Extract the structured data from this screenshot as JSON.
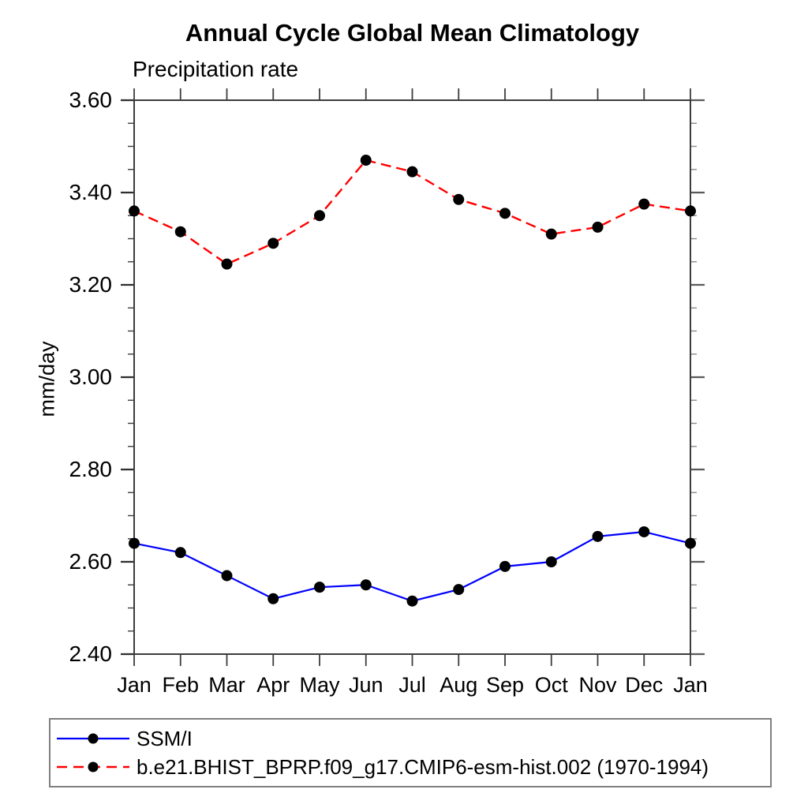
{
  "chart_data": {
    "type": "line",
    "title": "Annual Cycle Global Mean Climatology",
    "subtitle": "Precipitation rate",
    "ylabel": "mm/day",
    "xlabel": "",
    "categories": [
      "Jan",
      "Feb",
      "Mar",
      "Apr",
      "May",
      "Jun",
      "Jul",
      "Aug",
      "Sep",
      "Oct",
      "Nov",
      "Dec",
      "Jan"
    ],
    "ylim": [
      2.4,
      3.6
    ],
    "ytick_major": [
      2.4,
      2.6,
      2.8,
      3.0,
      3.2,
      3.4,
      3.6
    ],
    "ytick_labels": [
      "2.40",
      "2.60",
      "2.80",
      "3.00",
      "3.20",
      "3.40",
      "3.60"
    ],
    "ytick_minor_step": 0.05,
    "grid": false,
    "legend_position": "bottom-left box",
    "marker": "filled-circle",
    "marker_color": "#000000",
    "series": [
      {
        "name": "SSM/I",
        "color": "#0000ff",
        "style": "solid",
        "values": [
          2.64,
          2.62,
          2.57,
          2.52,
          2.545,
          2.55,
          2.515,
          2.54,
          2.59,
          2.6,
          2.655,
          2.665,
          2.64
        ]
      },
      {
        "name": "b.e21.BHIST_BPRP.f09_g17.CMIP6-esm-hist.002 (1970-1994)",
        "color": "#ff0000",
        "style": "dashed",
        "values": [
          3.36,
          3.315,
          3.245,
          3.29,
          3.35,
          3.47,
          3.445,
          3.385,
          3.355,
          3.31,
          3.325,
          3.375,
          3.36
        ]
      }
    ],
    "axis_color": "#3c3c3c"
  }
}
